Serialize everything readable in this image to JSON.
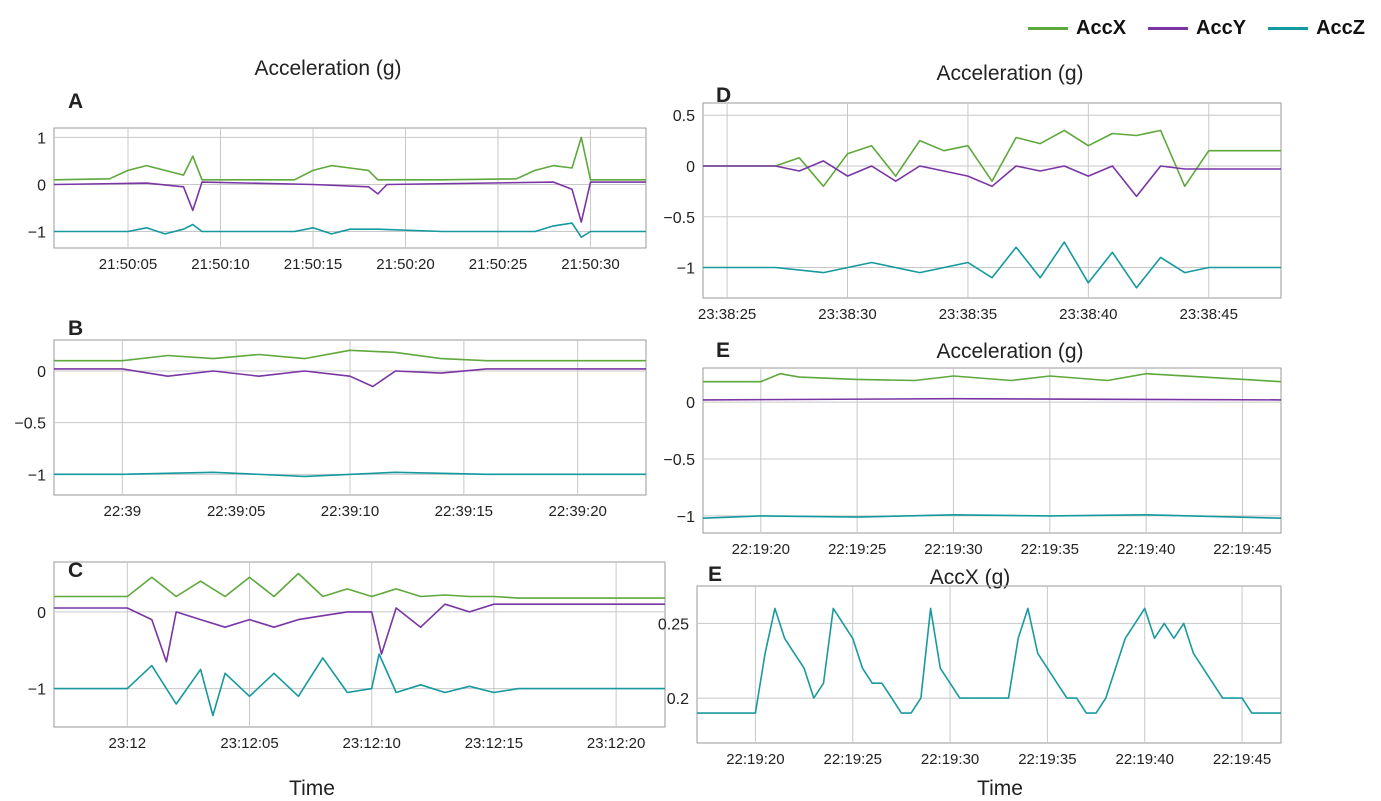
{
  "colors": {
    "AccX": "#5ea83c",
    "AccY": "#7a35a5",
    "AccZ": "#14999e",
    "AccXOnly": "#1a9a9e",
    "grid": "#c8c8c8"
  },
  "legend": [
    {
      "name": "AccX",
      "color": "#5ea83c"
    },
    {
      "name": "AccY",
      "color": "#7a35a5"
    },
    {
      "name": "AccZ",
      "color": "#14999e"
    }
  ],
  "figure": {
    "left_title": "Acceleration (g)",
    "left_xlabel": "Time",
    "right_xlabel": "Time"
  },
  "chart_data": [
    {
      "panel": "A",
      "type": "line",
      "title": "Acceleration (g)",
      "yticks": [
        1,
        0,
        -1
      ],
      "ylim": [
        -1.35,
        1.2
      ],
      "xticks": [
        "21:50:05",
        "21:50:10",
        "21:50:15",
        "21:50:20",
        "21:50:25",
        "21:50:30"
      ],
      "xlim": [
        1,
        33
      ],
      "series": [
        {
          "name": "AccX",
          "x": [
            1,
            4,
            5,
            6,
            7,
            8,
            8.5,
            9,
            10,
            14,
            15,
            16,
            17,
            18,
            18.5,
            19,
            22,
            26,
            27,
            28,
            29,
            29.5,
            30,
            33
          ],
          "y": [
            0.1,
            0.12,
            0.3,
            0.4,
            0.3,
            0.2,
            0.6,
            0.1,
            0.1,
            0.1,
            0.3,
            0.4,
            0.35,
            0.3,
            0.1,
            0.1,
            0.1,
            0.12,
            0.3,
            0.4,
            0.35,
            1.0,
            0.1,
            0.1
          ]
        },
        {
          "name": "AccY",
          "x": [
            1,
            6,
            8,
            8.5,
            9,
            15,
            18,
            18.5,
            19,
            28,
            29,
            29.5,
            30,
            33
          ],
          "y": [
            0.0,
            0.03,
            -0.05,
            -0.55,
            0.05,
            0.0,
            -0.05,
            -0.2,
            0.0,
            0.05,
            -0.1,
            -0.8,
            0.05,
            0.05
          ]
        },
        {
          "name": "AccZ",
          "x": [
            1,
            5,
            6,
            7,
            8,
            8.5,
            9,
            14,
            15,
            16,
            17,
            18.5,
            22,
            27,
            28,
            29,
            29.5,
            30,
            33
          ],
          "y": [
            -1.0,
            -1.0,
            -0.92,
            -1.05,
            -0.95,
            -0.85,
            -1.0,
            -1.0,
            -0.92,
            -1.05,
            -0.95,
            -0.95,
            -1.0,
            -1.0,
            -0.88,
            -0.82,
            -1.12,
            -1.0,
            -1.0
          ]
        }
      ]
    },
    {
      "panel": "B",
      "type": "line",
      "title": "",
      "yticks": [
        0,
        -0.5,
        -1
      ],
      "ylim": [
        -1.2,
        0.3
      ],
      "xticks": [
        "22:39",
        "22:39:05",
        "22:39:10",
        "22:39:15",
        "22:39:20"
      ],
      "xlim": [
        -3,
        23
      ],
      "series": [
        {
          "name": "AccX",
          "x": [
            -3,
            0,
            2,
            4,
            6,
            8,
            10,
            12,
            14,
            16,
            23
          ],
          "y": [
            0.1,
            0.1,
            0.15,
            0.12,
            0.16,
            0.12,
            0.2,
            0.18,
            0.12,
            0.1,
            0.1
          ]
        },
        {
          "name": "AccY",
          "x": [
            -3,
            0,
            2,
            4,
            6,
            8,
            10,
            11,
            12,
            14,
            16,
            23
          ],
          "y": [
            0.02,
            0.02,
            -0.05,
            0.0,
            -0.05,
            0.0,
            -0.05,
            -0.15,
            0.0,
            -0.02,
            0.02,
            0.02
          ]
        },
        {
          "name": "AccZ",
          "x": [
            -3,
            0,
            4,
            8,
            12,
            16,
            23
          ],
          "y": [
            -1.0,
            -1.0,
            -0.98,
            -1.02,
            -0.98,
            -1.0,
            -1.0
          ]
        }
      ]
    },
    {
      "panel": "C",
      "type": "line",
      "title": "",
      "yticks": [
        0,
        -1
      ],
      "ylim": [
        -1.5,
        0.65
      ],
      "xticks": [
        "23:12",
        "23:12:05",
        "23:12:10",
        "23:12:15",
        "23:12:20"
      ],
      "xlim": [
        -3,
        22
      ],
      "series": [
        {
          "name": "AccX",
          "x": [
            -3,
            0,
            1,
            2,
            3,
            4,
            5,
            6,
            7,
            8,
            9,
            10,
            11,
            12,
            13,
            14,
            15,
            16,
            22
          ],
          "y": [
            0.2,
            0.2,
            0.45,
            0.2,
            0.4,
            0.2,
            0.45,
            0.2,
            0.5,
            0.2,
            0.3,
            0.2,
            0.3,
            0.2,
            0.22,
            0.2,
            0.2,
            0.18,
            0.18
          ]
        },
        {
          "name": "AccY",
          "x": [
            -3,
            0,
            1,
            1.6,
            2,
            3,
            4,
            5,
            6,
            7,
            8,
            9,
            10,
            10.4,
            11,
            12,
            13,
            14,
            15,
            22
          ],
          "y": [
            0.05,
            0.05,
            -0.1,
            -0.65,
            0.0,
            -0.1,
            -0.2,
            -0.1,
            -0.2,
            -0.1,
            -0.05,
            0.0,
            0.0,
            -0.55,
            0.05,
            -0.2,
            0.1,
            0.0,
            0.1,
            0.1
          ]
        },
        {
          "name": "AccZ",
          "x": [
            -3,
            0,
            1,
            2,
            3,
            3.5,
            4,
            5,
            6,
            7,
            8,
            9,
            10,
            10.3,
            11,
            12,
            13,
            14,
            15,
            16,
            22
          ],
          "y": [
            -1.0,
            -1.0,
            -0.7,
            -1.2,
            -0.75,
            -1.35,
            -0.8,
            -1.1,
            -0.8,
            -1.1,
            -0.6,
            -1.05,
            -1.0,
            -0.55,
            -1.05,
            -0.95,
            -1.05,
            -0.97,
            -1.05,
            -1.0,
            -1.0
          ]
        }
      ]
    },
    {
      "panel": "D",
      "type": "line",
      "title": "Acceleration (g)",
      "yticks": [
        0.5,
        0,
        -0.5,
        -1
      ],
      "ylim": [
        -1.3,
        0.62
      ],
      "xticks": [
        "23:38:25",
        "23:38:30",
        "23:38:35",
        "23:38:40",
        "23:38:45"
      ],
      "xlim": [
        0,
        24
      ],
      "series": [
        {
          "name": "AccX",
          "x": [
            0,
            3,
            4,
            5,
            6,
            7,
            8,
            9,
            10,
            11,
            12,
            13,
            14,
            15,
            16,
            17,
            18,
            19,
            20,
            21,
            24
          ],
          "y": [
            0.0,
            0.0,
            0.08,
            -0.2,
            0.12,
            0.2,
            -0.1,
            0.25,
            0.15,
            0.2,
            -0.15,
            0.28,
            0.22,
            0.35,
            0.2,
            0.32,
            0.3,
            0.35,
            -0.2,
            0.15,
            0.15
          ]
        },
        {
          "name": "AccY",
          "x": [
            0,
            3,
            4,
            5,
            6,
            7,
            8,
            9,
            10,
            11,
            12,
            13,
            14,
            15,
            16,
            17,
            18,
            19,
            20,
            21,
            24
          ],
          "y": [
            0.0,
            0.0,
            -0.05,
            0.05,
            -0.1,
            0.0,
            -0.15,
            0.0,
            -0.05,
            -0.1,
            -0.2,
            0.0,
            -0.05,
            0.0,
            -0.1,
            0.0,
            -0.3,
            0.0,
            -0.03,
            -0.03,
            -0.03
          ]
        },
        {
          "name": "AccZ",
          "x": [
            0,
            3,
            5,
            7,
            9,
            11,
            12,
            13,
            14,
            15,
            16,
            17,
            18,
            19,
            20,
            21,
            24
          ],
          "y": [
            -1.0,
            -1.0,
            -1.05,
            -0.95,
            -1.05,
            -0.95,
            -1.1,
            -0.8,
            -1.1,
            -0.75,
            -1.15,
            -0.85,
            -1.2,
            -0.9,
            -1.05,
            -1.0,
            -1.0
          ]
        }
      ]
    },
    {
      "panel": "E",
      "type": "line",
      "title": "Acceleration (g)",
      "yticks": [
        0,
        -0.5,
        -1
      ],
      "ylim": [
        -1.15,
        0.3
      ],
      "xticks": [
        "22:19:20",
        "22:19:25",
        "22:19:30",
        "22:19:35",
        "22:19:40",
        "22:19:45"
      ],
      "xlim": [
        17,
        47
      ],
      "series": [
        {
          "name": "AccX",
          "x": [
            17,
            20,
            21,
            22,
            25,
            28,
            30,
            33,
            35,
            38,
            40,
            43,
            47
          ],
          "y": [
            0.18,
            0.18,
            0.25,
            0.22,
            0.2,
            0.19,
            0.23,
            0.19,
            0.23,
            0.19,
            0.25,
            0.22,
            0.18
          ]
        },
        {
          "name": "AccY",
          "x": [
            17,
            30,
            47
          ],
          "y": [
            0.02,
            0.03,
            0.02
          ]
        },
        {
          "name": "AccZ",
          "x": [
            17,
            20,
            25,
            30,
            35,
            40,
            47
          ],
          "y": [
            -1.02,
            -1.0,
            -1.01,
            -0.99,
            -1.0,
            -0.99,
            -1.02
          ]
        }
      ]
    },
    {
      "panel": "E",
      "type": "line",
      "title": "AccX (g)",
      "yticks": [
        0.25,
        0.2
      ],
      "ylim": [
        0.17,
        0.275
      ],
      "xticks": [
        "22:19:20",
        "22:19:25",
        "22:19:30",
        "22:19:35",
        "22:19:40",
        "22:19:45"
      ],
      "xlim": [
        17,
        47
      ],
      "series": [
        {
          "name": "AccX",
          "x": [
            17,
            19,
            20,
            20.5,
            21,
            21.5,
            22,
            22.5,
            23,
            23.5,
            24,
            24.5,
            25,
            25.5,
            26,
            26.5,
            27,
            27.5,
            28,
            28.5,
            29,
            29.5,
            30,
            30.5,
            31,
            32,
            33,
            33.5,
            34,
            34.5,
            35,
            35.5,
            36,
            36.5,
            37,
            37.5,
            38,
            38.5,
            39,
            39.5,
            40,
            40.5,
            41,
            41.5,
            42,
            42.5,
            43,
            43.5,
            44,
            44.5,
            45,
            45.5,
            46,
            47
          ],
          "y": [
            0.19,
            0.19,
            0.19,
            0.23,
            0.26,
            0.24,
            0.23,
            0.22,
            0.2,
            0.21,
            0.26,
            0.25,
            0.24,
            0.22,
            0.21,
            0.21,
            0.2,
            0.19,
            0.19,
            0.2,
            0.26,
            0.22,
            0.21,
            0.2,
            0.2,
            0.2,
            0.2,
            0.24,
            0.26,
            0.23,
            0.22,
            0.21,
            0.2,
            0.2,
            0.19,
            0.19,
            0.2,
            0.22,
            0.24,
            0.25,
            0.26,
            0.24,
            0.25,
            0.24,
            0.25,
            0.23,
            0.22,
            0.21,
            0.2,
            0.2,
            0.2,
            0.19,
            0.19,
            0.19
          ]
        }
      ]
    }
  ]
}
